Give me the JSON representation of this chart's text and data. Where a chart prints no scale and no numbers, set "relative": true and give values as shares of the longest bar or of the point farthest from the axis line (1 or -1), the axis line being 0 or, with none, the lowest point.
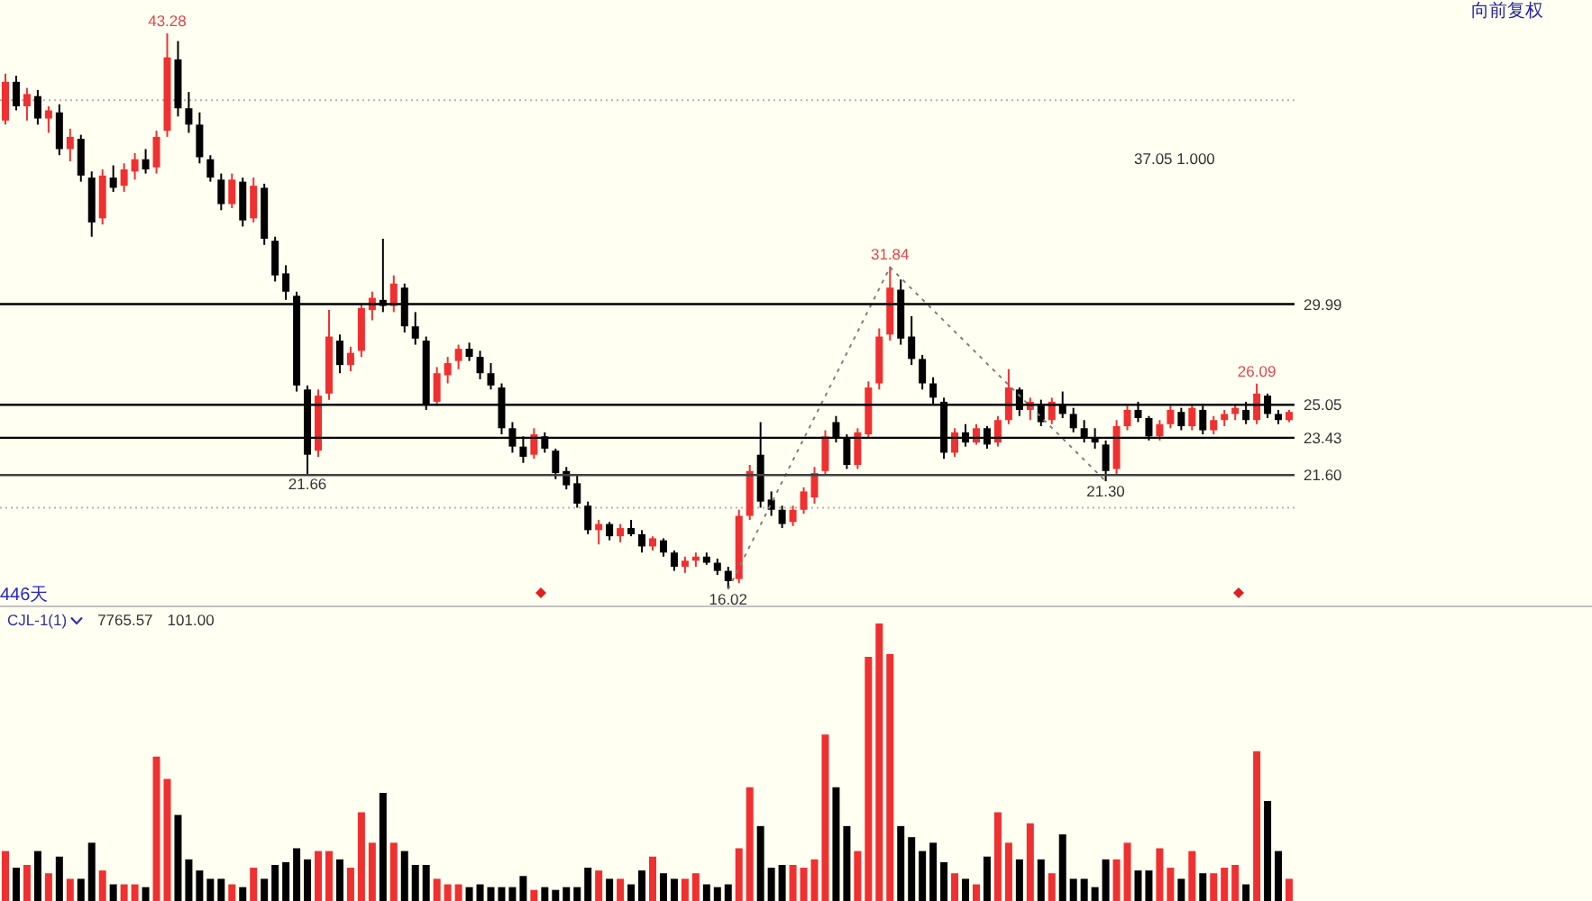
{
  "chart_data": [
    {
      "type": "candlestick",
      "categories": [
        null,
        null,
        null,
        null,
        null,
        null,
        null,
        null,
        null,
        null,
        null,
        null,
        null,
        null,
        null,
        null,
        null,
        null,
        null,
        null,
        null,
        null,
        null,
        null,
        null,
        null,
        null,
        null,
        null,
        null,
        null,
        null,
        null,
        null,
        null,
        null,
        null,
        null,
        null,
        null,
        null,
        null,
        null,
        null,
        null,
        null,
        null,
        null,
        null,
        null,
        null,
        null,
        null,
        null,
        null,
        null,
        null,
        null,
        null,
        null,
        null,
        null,
        null,
        null,
        null,
        null,
        null,
        null,
        null,
        null,
        null,
        null,
        null,
        null,
        null,
        null,
        null,
        null,
        null,
        null,
        null,
        null,
        null,
        null,
        null,
        null,
        null,
        null,
        null,
        null,
        null,
        null,
        null,
        null,
        null,
        null,
        null,
        null,
        null,
        null,
        null,
        null,
        null,
        null,
        null,
        null,
        null,
        null,
        null,
        null,
        null,
        null,
        null,
        null,
        null,
        null,
        null,
        null,
        null,
        null
      ],
      "ohlc": [
        [
          39.0,
          41.3,
          38.8,
          40.9
        ],
        [
          40.9,
          41.2,
          39.5,
          39.7
        ],
        [
          39.7,
          40.6,
          39.0,
          40.3
        ],
        [
          40.2,
          40.5,
          38.8,
          39.1
        ],
        [
          39.1,
          39.7,
          38.4,
          39.5
        ],
        [
          39.4,
          39.8,
          37.3,
          37.6
        ],
        [
          37.6,
          38.6,
          37.0,
          38.2
        ],
        [
          38.1,
          38.3,
          36.0,
          36.3
        ],
        [
          36.2,
          36.5,
          33.3,
          34.0
        ],
        [
          34.2,
          36.6,
          33.9,
          36.3
        ],
        [
          36.2,
          36.8,
          35.5,
          35.7
        ],
        [
          35.8,
          36.9,
          35.5,
          36.6
        ],
        [
          36.5,
          37.4,
          36.1,
          37.1
        ],
        [
          37.1,
          37.6,
          36.4,
          36.6
        ],
        [
          36.7,
          38.5,
          36.4,
          38.2
        ],
        [
          38.5,
          43.28,
          38.2,
          42.1
        ],
        [
          42.0,
          42.9,
          39.2,
          39.6
        ],
        [
          39.6,
          40.4,
          38.4,
          38.8
        ],
        [
          38.8,
          39.4,
          36.9,
          37.2
        ],
        [
          37.1,
          37.3,
          36.0,
          36.2
        ],
        [
          36.1,
          36.4,
          34.6,
          34.9
        ],
        [
          34.9,
          36.4,
          34.7,
          36.1
        ],
        [
          36.0,
          36.2,
          33.8,
          34.1
        ],
        [
          34.2,
          36.2,
          34.0,
          35.8
        ],
        [
          35.7,
          35.9,
          32.9,
          33.2
        ],
        [
          33.1,
          33.3,
          31.1,
          31.4
        ],
        [
          31.5,
          31.9,
          30.2,
          30.6
        ],
        [
          30.4,
          30.6,
          25.7,
          26.0
        ],
        [
          25.8,
          26.0,
          21.66,
          22.6
        ],
        [
          22.8,
          25.8,
          22.5,
          25.5
        ],
        [
          25.6,
          29.7,
          25.3,
          28.4
        ],
        [
          28.2,
          28.5,
          26.6,
          27.0
        ],
        [
          27.0,
          27.9,
          26.7,
          27.6
        ],
        [
          27.7,
          30.0,
          27.4,
          29.8
        ],
        [
          29.7,
          30.6,
          29.2,
          30.3
        ],
        [
          30.2,
          33.2,
          29.6,
          29.9
        ],
        [
          29.9,
          31.4,
          29.6,
          31.0
        ],
        [
          30.8,
          31.0,
          28.6,
          28.9
        ],
        [
          28.9,
          29.6,
          28.0,
          28.3
        ],
        [
          28.2,
          28.4,
          24.8,
          25.1
        ],
        [
          25.2,
          26.9,
          25.0,
          26.6
        ],
        [
          26.5,
          27.4,
          26.1,
          27.1
        ],
        [
          27.2,
          28.0,
          26.8,
          27.8
        ],
        [
          27.8,
          28.1,
          27.2,
          27.4
        ],
        [
          27.4,
          27.7,
          26.3,
          26.6
        ],
        [
          26.6,
          27.1,
          25.8,
          26.0
        ],
        [
          25.9,
          26.1,
          23.6,
          23.9
        ],
        [
          23.9,
          24.2,
          22.7,
          23.0
        ],
        [
          23.0,
          23.5,
          22.2,
          22.5
        ],
        [
          22.6,
          23.9,
          22.4,
          23.6
        ],
        [
          23.5,
          23.7,
          22.7,
          22.9
        ],
        [
          22.8,
          22.9,
          21.4,
          21.7
        ],
        [
          21.8,
          22.0,
          20.9,
          21.1
        ],
        [
          21.2,
          21.6,
          20.0,
          20.2
        ],
        [
          20.1,
          20.3,
          18.7,
          18.9
        ],
        [
          18.9,
          19.4,
          18.2,
          19.2
        ],
        [
          19.2,
          19.3,
          18.4,
          18.6
        ],
        [
          18.6,
          19.2,
          18.3,
          19.0
        ],
        [
          19.0,
          19.4,
          18.6,
          18.7
        ],
        [
          18.7,
          18.9,
          17.8,
          18.1
        ],
        [
          18.1,
          18.6,
          17.9,
          18.5
        ],
        [
          18.4,
          18.5,
          17.6,
          17.8
        ],
        [
          17.8,
          17.9,
          16.9,
          17.1
        ],
        [
          17.1,
          17.6,
          16.8,
          17.4
        ],
        [
          17.4,
          17.8,
          17.1,
          17.6
        ],
        [
          17.6,
          17.8,
          17.2,
          17.3
        ],
        [
          17.3,
          17.5,
          16.7,
          16.9
        ],
        [
          16.9,
          17.1,
          16.02,
          16.4
        ],
        [
          16.5,
          19.9,
          16.3,
          19.6
        ],
        [
          19.6,
          22.1,
          19.4,
          21.8
        ],
        [
          22.6,
          24.2,
          20.0,
          20.3
        ],
        [
          20.4,
          20.8,
          19.6,
          19.9
        ],
        [
          19.9,
          20.1,
          19.0,
          19.2
        ],
        [
          19.3,
          20.1,
          19.1,
          19.9
        ],
        [
          19.9,
          21.0,
          19.7,
          20.8
        ],
        [
          20.5,
          22.0,
          20.2,
          21.7
        ],
        [
          21.8,
          23.8,
          21.6,
          23.5
        ],
        [
          24.2,
          24.5,
          23.2,
          23.4
        ],
        [
          23.4,
          23.6,
          21.9,
          22.1
        ],
        [
          22.1,
          23.9,
          21.9,
          23.7
        ],
        [
          23.6,
          26.2,
          23.4,
          25.9
        ],
        [
          26.1,
          28.8,
          25.8,
          28.4
        ],
        [
          28.5,
          31.84,
          28.2,
          30.8
        ],
        [
          30.7,
          31.2,
          28.0,
          28.3
        ],
        [
          28.4,
          29.4,
          27.0,
          27.3
        ],
        [
          27.3,
          27.5,
          25.8,
          26.1
        ],
        [
          26.1,
          26.4,
          25.1,
          25.4
        ],
        [
          25.2,
          25.4,
          22.4,
          22.7
        ],
        [
          22.7,
          23.9,
          22.5,
          23.7
        ],
        [
          23.7,
          24.1,
          23.0,
          23.2
        ],
        [
          23.2,
          24.1,
          23.1,
          23.9
        ],
        [
          23.9,
          24.0,
          22.9,
          23.1
        ],
        [
          23.2,
          24.5,
          23.0,
          24.3
        ],
        [
          24.3,
          26.8,
          24.1,
          25.9
        ],
        [
          25.8,
          25.9,
          24.5,
          24.8
        ],
        [
          24.8,
          25.4,
          24.3,
          25.2
        ],
        [
          25.1,
          25.3,
          24.0,
          24.2
        ],
        [
          24.3,
          25.4,
          24.1,
          25.2
        ],
        [
          25.1,
          25.7,
          24.4,
          24.6
        ],
        [
          24.6,
          24.9,
          23.7,
          23.9
        ],
        [
          23.9,
          24.3,
          23.2,
          23.4
        ],
        [
          23.4,
          23.9,
          22.9,
          23.2
        ],
        [
          23.1,
          23.3,
          21.3,
          21.8
        ],
        [
          21.9,
          24.3,
          21.6,
          24.0
        ],
        [
          24.0,
          25.0,
          23.8,
          24.8
        ],
        [
          24.8,
          25.2,
          24.2,
          24.4
        ],
        [
          24.4,
          24.5,
          23.3,
          23.5
        ],
        [
          23.5,
          24.3,
          23.3,
          24.1
        ],
        [
          24.1,
          25.0,
          23.9,
          24.8
        ],
        [
          24.7,
          24.9,
          23.8,
          24.0
        ],
        [
          24.0,
          25.1,
          23.8,
          24.9
        ],
        [
          24.8,
          25.0,
          23.6,
          23.8
        ],
        [
          23.8,
          24.5,
          23.6,
          24.3
        ],
        [
          24.3,
          24.8,
          24.0,
          24.6
        ],
        [
          24.6,
          25.1,
          24.3,
          24.9
        ],
        [
          24.8,
          25.2,
          24.1,
          24.3
        ],
        [
          24.3,
          26.09,
          24.1,
          25.6
        ],
        [
          25.5,
          25.6,
          24.4,
          24.6
        ],
        [
          24.6,
          24.8,
          24.1,
          24.3
        ],
        [
          24.3,
          24.8,
          24.2,
          24.7
        ]
      ],
      "colors": [
        "#f03030",
        "#000000",
        "#f03030",
        "#000000",
        "#f03030",
        "#000000",
        "#f03030",
        "#000000",
        "#000000",
        "#f03030",
        "#000000",
        "#f03030",
        "#f03030",
        "#000000",
        "#f03030",
        "#f03030",
        "#000000",
        "#000000",
        "#000000",
        "#000000",
        "#000000",
        "#f03030",
        "#000000",
        "#f03030",
        "#000000",
        "#000000",
        "#000000",
        "#000000",
        "#000000",
        "#f03030",
        "#f03030",
        "#000000",
        "#f03030",
        "#f03030",
        "#f03030",
        "#000000",
        "#f03030",
        "#000000",
        "#000000",
        "#000000",
        "#f03030",
        "#f03030",
        "#f03030",
        "#000000",
        "#000000",
        "#000000",
        "#000000",
        "#000000",
        "#000000",
        "#f03030",
        "#000000",
        "#000000",
        "#000000",
        "#000000",
        "#000000",
        "#f03030",
        "#000000",
        "#f03030",
        "#000000",
        "#000000",
        "#f03030",
        "#000000",
        "#000000",
        "#f03030",
        "#f03030",
        "#000000",
        "#000000",
        "#000000",
        "#f03030",
        "#f03030",
        "#000000",
        "#000000",
        "#000000",
        "#f03030",
        "#f03030",
        "#f03030",
        "#f03030",
        "#000000",
        "#000000",
        "#f03030",
        "#f03030",
        "#f03030",
        "#f03030",
        "#000000",
        "#000000",
        "#000000",
        "#000000",
        "#000000",
        "#f03030",
        "#000000",
        "#f03030",
        "#000000",
        "#f03030",
        "#f03030",
        "#000000",
        "#f03030",
        "#000000",
        "#f03030",
        "#000000",
        "#000000",
        "#000000",
        "#000000",
        "#000000",
        "#f03030",
        "#f03030",
        "#000000",
        "#000000",
        "#f03030",
        "#f03030",
        "#000000",
        "#f03030",
        "#000000",
        "#f03030",
        "#f03030",
        "#f03030",
        "#000000",
        "#f03030",
        "#000000",
        "#000000",
        "#f03030"
      ],
      "value_labels": [
        null,
        null,
        null,
        null,
        null,
        null,
        null,
        null,
        null,
        null,
        null,
        null,
        null,
        null,
        null,
        "43.28",
        null,
        null,
        null,
        null,
        null,
        null,
        null,
        null,
        null,
        null,
        null,
        null,
        "21.66",
        null,
        null,
        null,
        null,
        null,
        null,
        null,
        null,
        null,
        null,
        null,
        null,
        null,
        null,
        null,
        null,
        null,
        null,
        null,
        null,
        null,
        null,
        null,
        null,
        null,
        null,
        null,
        null,
        null,
        null,
        null,
        null,
        null,
        null,
        null,
        null,
        null,
        null,
        "16.02",
        null,
        null,
        null,
        null,
        null,
        null,
        null,
        null,
        null,
        null,
        null,
        null,
        null,
        null,
        "31.84",
        null,
        null,
        null,
        null,
        null,
        null,
        null,
        null,
        null,
        null,
        null,
        null,
        null,
        null,
        null,
        null,
        null,
        null,
        null,
        "21.30",
        null,
        null,
        null,
        null,
        null,
        null,
        null,
        null,
        null,
        null,
        null,
        null,
        null,
        "26.09",
        null,
        null,
        null
      ],
      "series": [
        {
          "type": "line",
          "color": "#808080",
          "line_style": "dotted",
          "values": [
            null,
            null,
            null,
            null,
            null,
            null,
            null,
            null,
            null,
            null,
            null,
            null,
            null,
            null,
            null,
            null,
            null,
            null,
            null,
            null,
            null,
            null,
            null,
            null,
            null,
            null,
            null,
            null,
            null,
            null,
            null,
            null,
            null,
            null,
            null,
            null,
            null,
            null,
            null,
            null,
            null,
            null,
            null,
            null,
            null,
            null,
            null,
            null,
            null,
            null,
            null,
            null,
            null,
            null,
            null,
            null,
            null,
            null,
            null,
            null,
            null,
            null,
            null,
            null,
            null,
            null,
            null,
            16.0,
            null,
            null,
            null,
            null,
            null,
            null,
            null,
            null,
            null,
            null,
            null,
            null,
            null,
            null,
            31.8,
            null,
            null,
            null,
            null,
            null,
            null,
            null,
            null,
            null,
            null,
            null,
            null,
            null,
            null,
            null,
            null,
            null,
            null,
            null,
            21.3,
            null,
            null,
            null,
            null,
            null,
            null,
            null,
            null,
            null,
            null,
            null,
            null,
            null,
            null,
            null,
            null,
            null
          ]
        }
      ],
      "yticks": [
        {
          "value": 20,
          "label": null
        },
        {
          "value": 40,
          "label": null
        }
      ],
      "grid": "y",
      "tick_labels": false,
      "ref_lines": [
        {
          "axis": "y",
          "value": 29.99,
          "label": "29.99",
          "color": "#000000"
        },
        {
          "axis": "y",
          "value": 25.05,
          "label": "25.05",
          "color": "#000000"
        },
        {
          "axis": "y",
          "value": 23.43,
          "label": "23.43",
          "color": "#000000"
        },
        {
          "axis": "y",
          "value": 21.6,
          "label": "21.60",
          "color": "#404040"
        }
      ],
      "annotations": [
        "446天",
        "向前复权",
        "37.05 1.000"
      ]
    },
    {
      "type": "bar",
      "title": "CJL-1(1)",
      "relative": true,
      "categories": [
        null,
        null,
        null,
        null,
        null,
        null,
        null,
        null,
        null,
        null,
        null,
        null,
        null,
        null,
        null,
        null,
        null,
        null,
        null,
        null,
        null,
        null,
        null,
        null,
        null,
        null,
        null,
        null,
        null,
        null,
        null,
        null,
        null,
        null,
        null,
        null,
        null,
        null,
        null,
        null,
        null,
        null,
        null,
        null,
        null,
        null,
        null,
        null,
        null,
        null,
        null,
        null,
        null,
        null,
        null,
        null,
        null,
        null,
        null,
        null,
        null,
        null,
        null,
        null,
        null,
        null,
        null,
        null,
        null,
        null,
        null,
        null,
        null,
        null,
        null,
        null,
        null,
        null,
        null,
        null,
        null,
        null,
        null,
        null,
        null,
        null,
        null,
        null,
        null,
        null,
        null,
        null,
        null,
        null,
        null,
        null,
        null,
        null,
        null,
        null,
        null,
        null,
        null,
        null,
        null,
        null,
        null,
        null,
        null,
        null,
        null,
        null,
        null,
        null,
        null,
        null,
        null,
        null,
        null,
        null
      ],
      "values": [
        0.18,
        0.12,
        0.13,
        0.18,
        0.1,
        0.16,
        0.08,
        0.08,
        0.21,
        0.11,
        0.06,
        0.06,
        0.06,
        0.05,
        0.52,
        0.44,
        0.31,
        0.15,
        0.11,
        0.08,
        0.08,
        0.06,
        0.05,
        0.12,
        0.08,
        0.13,
        0.14,
        0.19,
        0.15,
        0.18,
        0.18,
        0.15,
        0.12,
        0.32,
        0.21,
        0.39,
        0.21,
        0.18,
        0.13,
        0.13,
        0.08,
        0.06,
        0.06,
        0.05,
        0.06,
        0.05,
        0.05,
        0.05,
        0.09,
        0.04,
        0.05,
        0.04,
        0.05,
        0.05,
        0.12,
        0.11,
        0.08,
        0.08,
        0.06,
        0.11,
        0.16,
        0.1,
        0.08,
        0.08,
        0.1,
        0.06,
        0.05,
        0.06,
        0.19,
        0.41,
        0.27,
        0.12,
        0.13,
        0.13,
        0.12,
        0.15,
        0.6,
        0.41,
        0.27,
        0.18,
        0.88,
        1,
        0.89,
        0.27,
        0.23,
        0.18,
        0.21,
        0.14,
        0.1,
        0.08,
        0.06,
        0.16,
        0.32,
        0.21,
        0.15,
        0.28,
        0.15,
        0.1,
        0.24,
        0.08,
        0.08,
        0.05,
        0.15,
        0.15,
        0.21,
        0.11,
        0.11,
        0.19,
        0.12,
        0.08,
        0.18,
        0.1,
        0.1,
        0.12,
        0.13,
        0.06,
        0.54,
        0.36,
        0.18,
        0.08
      ],
      "colors": [
        "#f03030",
        "#000000",
        "#f03030",
        "#000000",
        "#f03030",
        "#000000",
        "#f03030",
        "#000000",
        "#000000",
        "#f03030",
        "#000000",
        "#f03030",
        "#f03030",
        "#000000",
        "#f03030",
        "#f03030",
        "#000000",
        "#000000",
        "#000000",
        "#000000",
        "#000000",
        "#f03030",
        "#000000",
        "#f03030",
        "#000000",
        "#000000",
        "#000000",
        "#000000",
        "#000000",
        "#f03030",
        "#f03030",
        "#000000",
        "#f03030",
        "#f03030",
        "#f03030",
        "#000000",
        "#f03030",
        "#000000",
        "#000000",
        "#000000",
        "#f03030",
        "#f03030",
        "#f03030",
        "#000000",
        "#000000",
        "#000000",
        "#000000",
        "#000000",
        "#000000",
        "#f03030",
        "#000000",
        "#000000",
        "#000000",
        "#000000",
        "#000000",
        "#f03030",
        "#000000",
        "#f03030",
        "#000000",
        "#000000",
        "#f03030",
        "#000000",
        "#000000",
        "#f03030",
        "#f03030",
        "#000000",
        "#000000",
        "#000000",
        "#f03030",
        "#f03030",
        "#000000",
        "#000000",
        "#000000",
        "#f03030",
        "#f03030",
        "#f03030",
        "#f03030",
        "#000000",
        "#000000",
        "#f03030",
        "#f03030",
        "#f03030",
        "#f03030",
        "#000000",
        "#000000",
        "#000000",
        "#000000",
        "#000000",
        "#f03030",
        "#000000",
        "#f03030",
        "#000000",
        "#f03030",
        "#f03030",
        "#000000",
        "#f03030",
        "#000000",
        "#f03030",
        "#000000",
        "#000000",
        "#000000",
        "#000000",
        "#000000",
        "#f03030",
        "#f03030",
        "#000000",
        "#000000",
        "#f03030",
        "#f03030",
        "#000000",
        "#f03030",
        "#000000",
        "#f03030",
        "#f03030",
        "#f03030",
        "#000000",
        "#f03030",
        "#000000",
        "#000000",
        "#f03030"
      ],
      "annotations": [
        "7765.57",
        "101.00"
      ]
    }
  ]
}
